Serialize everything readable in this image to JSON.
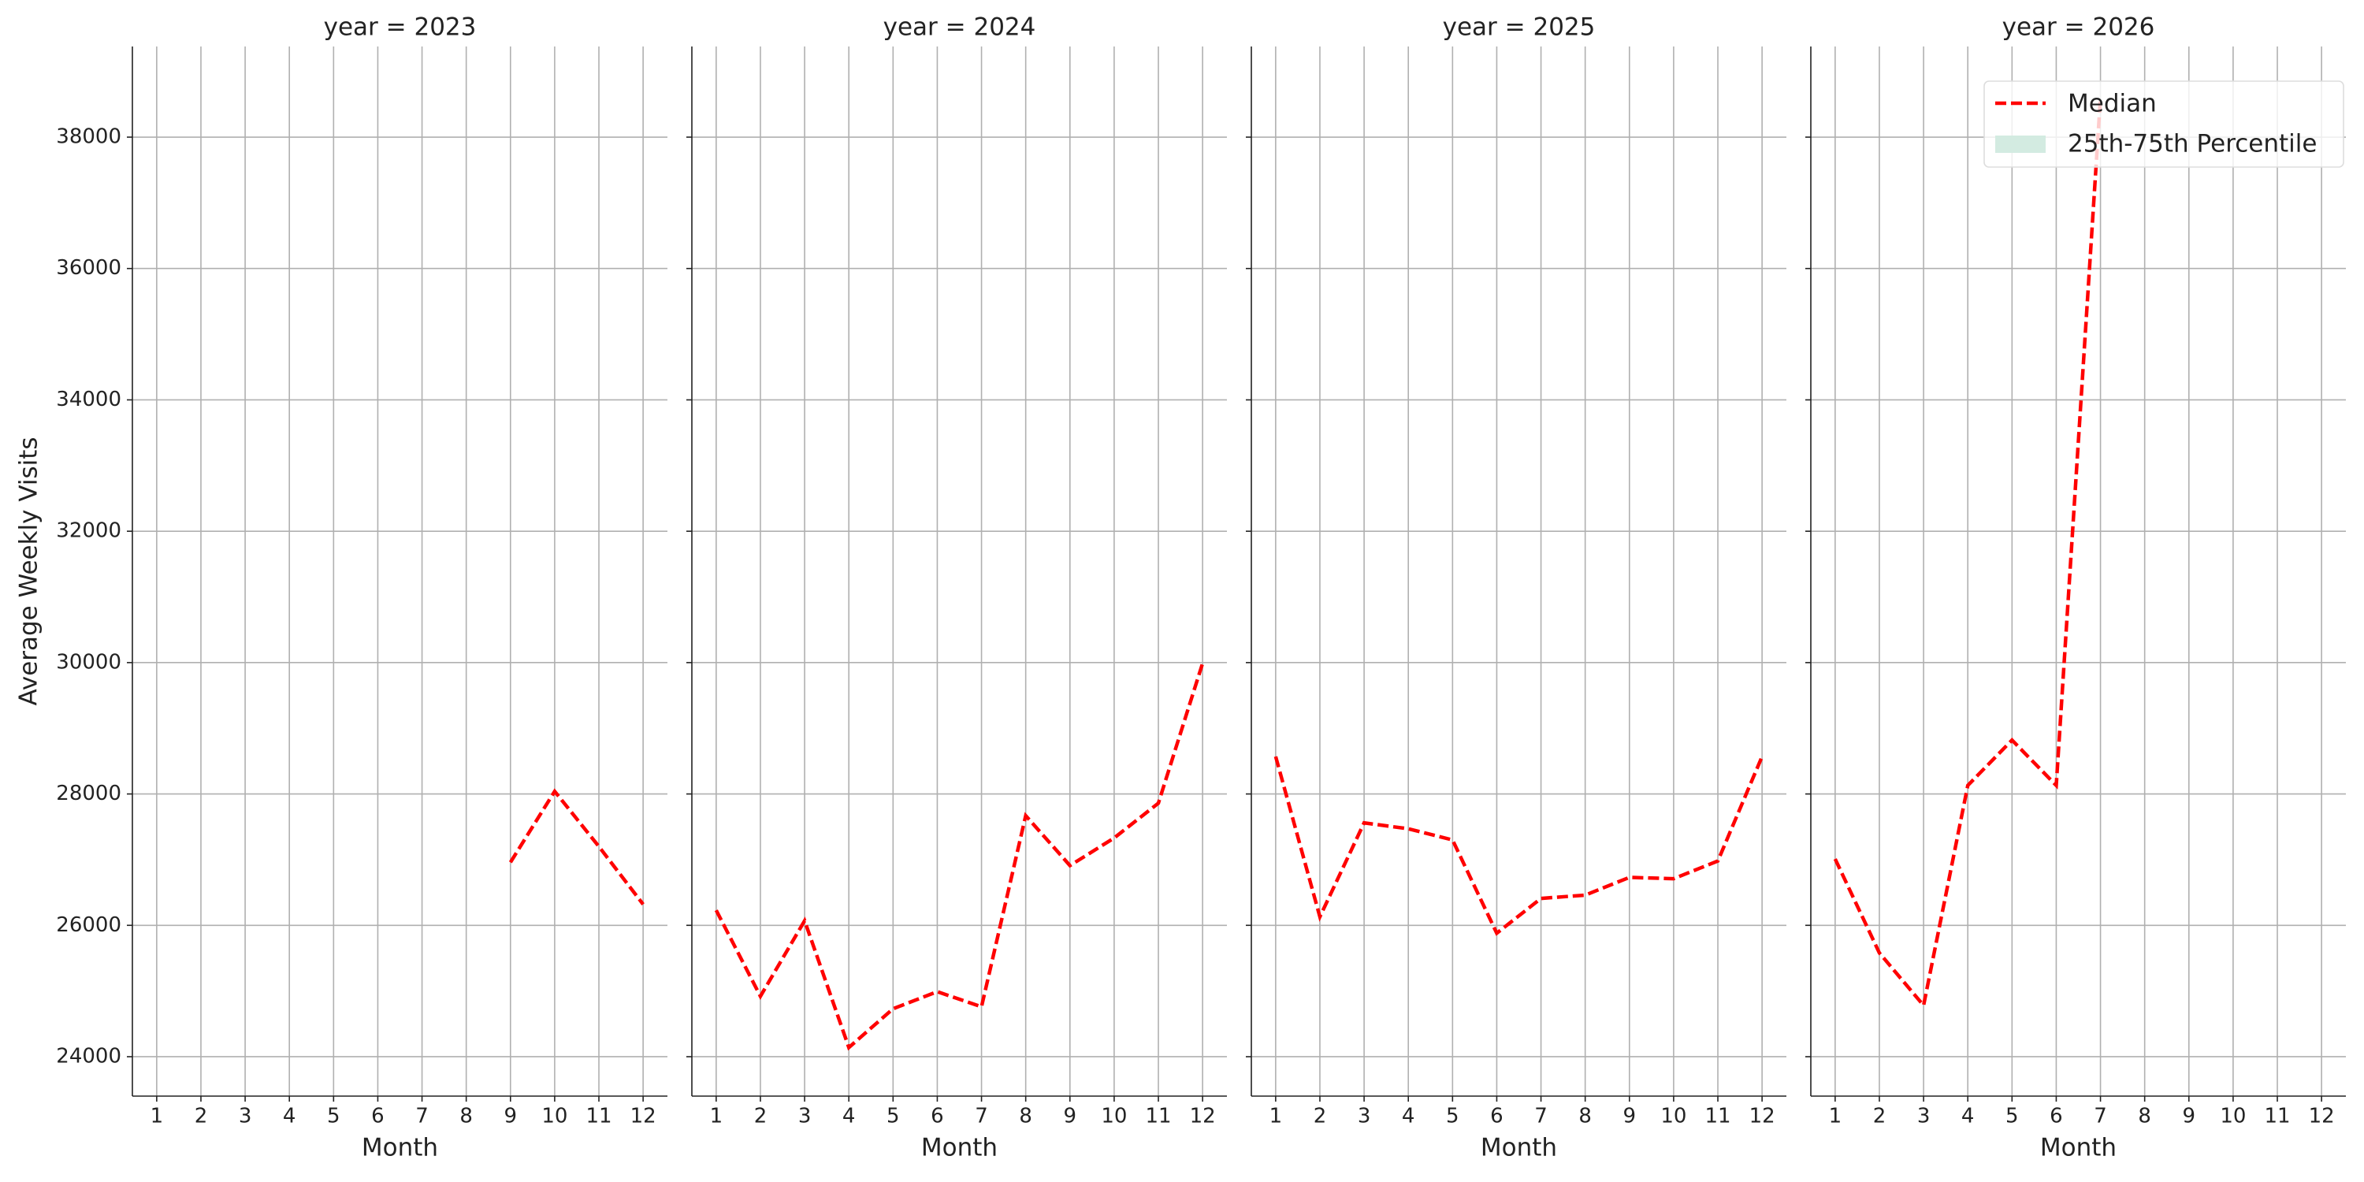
{
  "chart_data": [
    {
      "type": "line",
      "title": "year = 2023",
      "xlabel": "Month",
      "ylabel": "Average Weekly Visits",
      "x": [
        1,
        2,
        3,
        4,
        5,
        6,
        7,
        8,
        9,
        10,
        11,
        12
      ],
      "series": [
        {
          "color": "#ff0000",
          "style": "dashed",
          "values": [
            null,
            null,
            null,
            null,
            null,
            null,
            null,
            null,
            26960,
            28040,
            27200,
            26320
          ]
        }
      ],
      "xlim": [
        0.45,
        12.55
      ],
      "xticks": [
        1,
        2,
        3,
        4,
        5,
        6,
        7,
        8,
        9,
        10,
        11,
        12
      ],
      "ylim": [
        23400,
        39380
      ],
      "yticks": [
        24000,
        26000,
        28000,
        30000,
        32000,
        34000,
        36000,
        38000
      ],
      "grid": true
    },
    {
      "type": "line",
      "title": "year = 2024",
      "xlabel": "Month",
      "x": [
        1,
        2,
        3,
        4,
        5,
        6,
        7,
        8,
        9,
        10,
        11,
        12
      ],
      "series": [
        {
          "color": "#ff0000",
          "style": "dashed",
          "values": [
            26230,
            24920,
            26070,
            24140,
            24730,
            24990,
            24760,
            27670,
            26910,
            27330,
            27860,
            29990
          ]
        }
      ],
      "xlim": [
        0.45,
        12.55
      ],
      "xticks": [
        1,
        2,
        3,
        4,
        5,
        6,
        7,
        8,
        9,
        10,
        11,
        12
      ],
      "ylim": [
        23400,
        39380
      ],
      "yticks": [
        24000,
        26000,
        28000,
        30000,
        32000,
        34000,
        36000,
        38000
      ],
      "grid": true
    },
    {
      "type": "line",
      "title": "year = 2025",
      "xlabel": "Month",
      "x": [
        1,
        2,
        3,
        4,
        5,
        6,
        7,
        8,
        9,
        10,
        11,
        12
      ],
      "series": [
        {
          "color": "#ff0000",
          "style": "dashed",
          "values": [
            28570,
            26130,
            27560,
            27470,
            27300,
            25880,
            26410,
            26460,
            26730,
            26710,
            26980,
            28570
          ]
        }
      ],
      "xlim": [
        0.45,
        12.55
      ],
      "xticks": [
        1,
        2,
        3,
        4,
        5,
        6,
        7,
        8,
        9,
        10,
        11,
        12
      ],
      "ylim": [
        23400,
        39380
      ],
      "yticks": [
        24000,
        26000,
        28000,
        30000,
        32000,
        34000,
        36000,
        38000
      ],
      "grid": true
    },
    {
      "type": "line",
      "title": "year = 2026",
      "xlabel": "Month",
      "x": [
        1,
        2,
        3,
        4,
        5,
        6,
        7,
        8,
        9,
        10,
        11,
        12
      ],
      "series": [
        {
          "color": "#ff0000",
          "style": "dashed",
          "values": [
            27010,
            25580,
            24780,
            28130,
            28820,
            28130,
            38600,
            null,
            null,
            null,
            null,
            null
          ]
        }
      ],
      "xlim": [
        0.45,
        12.55
      ],
      "xticks": [
        1,
        2,
        3,
        4,
        5,
        6,
        7,
        8,
        9,
        10,
        11,
        12
      ],
      "ylim": [
        23400,
        39380
      ],
      "yticks": [
        24000,
        26000,
        28000,
        30000,
        32000,
        34000,
        36000,
        38000
      ],
      "grid": true,
      "legend": {
        "loc": "upper right",
        "entries": [
          {
            "name": "Median",
            "color": "#ff0000",
            "style": "dashed"
          },
          {
            "name": "25th-75th Percentile",
            "color": "#d3ebe1",
            "style": "patch"
          }
        ]
      }
    }
  ]
}
